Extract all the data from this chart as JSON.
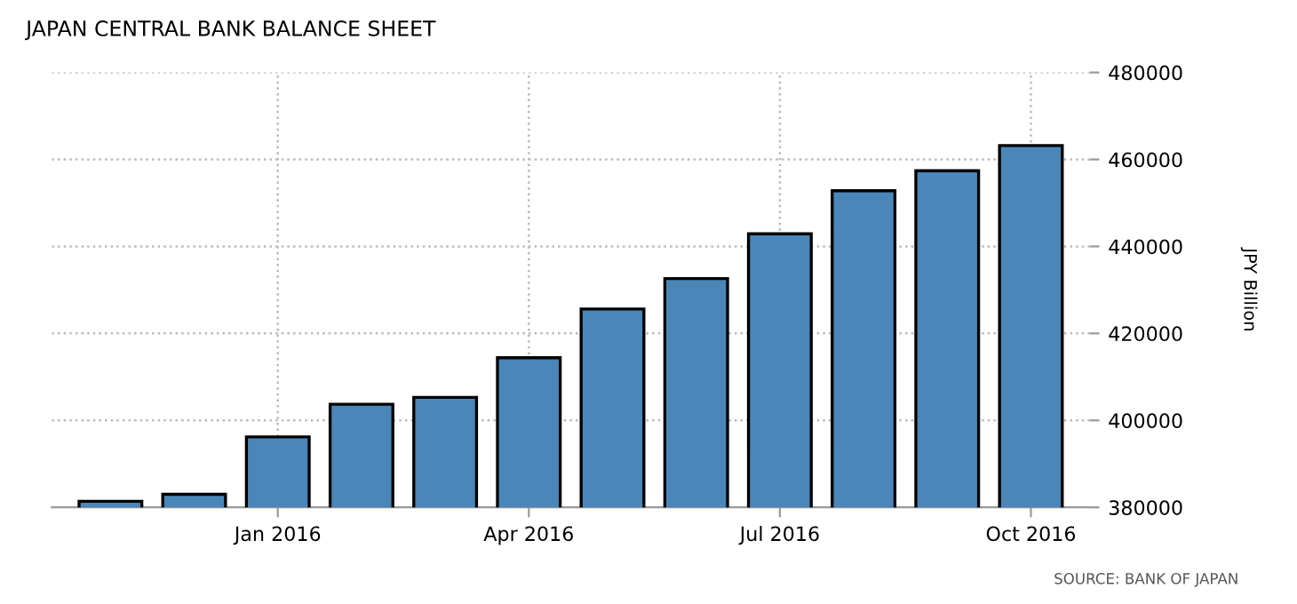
{
  "chart_data": {
    "type": "bar",
    "title": "JAPAN CENTRAL BANK BALANCE SHEET",
    "ylabel": "JPY Billion",
    "categories": [
      null,
      null,
      "Jan 2016",
      null,
      null,
      "Apr 2016",
      null,
      null,
      "Jul 2016",
      null,
      null,
      "Oct 2016"
    ],
    "values": [
      381400,
      383000,
      396200,
      403700,
      405300,
      414400,
      425600,
      432600,
      442900,
      452800,
      457400,
      463200
    ],
    "color": "#4a86b8",
    "ylim": [
      380000,
      480000
    ],
    "yticks": [
      380000,
      400000,
      420000,
      440000,
      460000,
      480000
    ],
    "grid": true,
    "annotations": [
      "SOURCE: BANK OF JAPAN"
    ]
  }
}
